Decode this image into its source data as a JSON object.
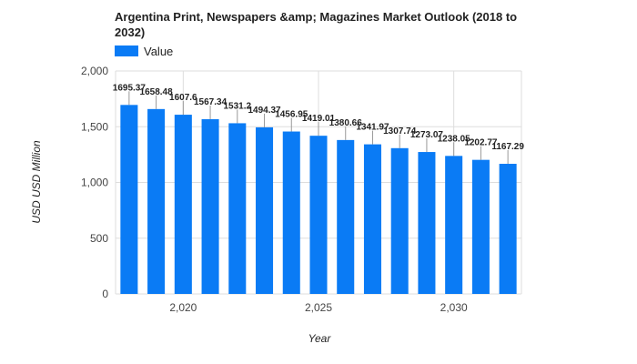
{
  "chart_data": {
    "type": "bar",
    "title_line1": "Argentina Print, Newspapers &amp; Magazines Market Outlook (2018 to",
    "title_line2": "2032)",
    "xlabel": "Year",
    "ylabel": "USD USD Million",
    "legend": {
      "label": "Value",
      "position": "top-left"
    },
    "x": [
      2018,
      2019,
      2020,
      2021,
      2022,
      2023,
      2024,
      2025,
      2026,
      2027,
      2028,
      2029,
      2030,
      2031,
      2032
    ],
    "values": [
      1695.37,
      1658.48,
      1607.6,
      1567.34,
      1531.2,
      1494.37,
      1456.95,
      1419.01,
      1380.66,
      1341.97,
      1307.74,
      1273.07,
      1238.05,
      1202.77,
      1167.29
    ],
    "value_labels": [
      "1695.37",
      "1658.48",
      "1607.6",
      "1567.34",
      "1531.2",
      "1494.37",
      "1456.95",
      "1419.01",
      "1380.66",
      "1341.97",
      "1307.74",
      "1273.07",
      "1238.05",
      "1202.77",
      "1167.29"
    ],
    "ylim": [
      0,
      2000
    ],
    "y_ticks": [
      0,
      500,
      1000,
      1500,
      2000
    ],
    "y_tick_labels": [
      "0",
      "500",
      "1,000",
      "1,500",
      "2,000"
    ],
    "x_ticks": [
      2020,
      2025,
      2030
    ],
    "x_tick_labels": [
      "2,020",
      "2,025",
      "2,030"
    ],
    "grid": true,
    "colors": {
      "bar": "#0A7BF5",
      "grid": "#DDDDDD"
    }
  }
}
